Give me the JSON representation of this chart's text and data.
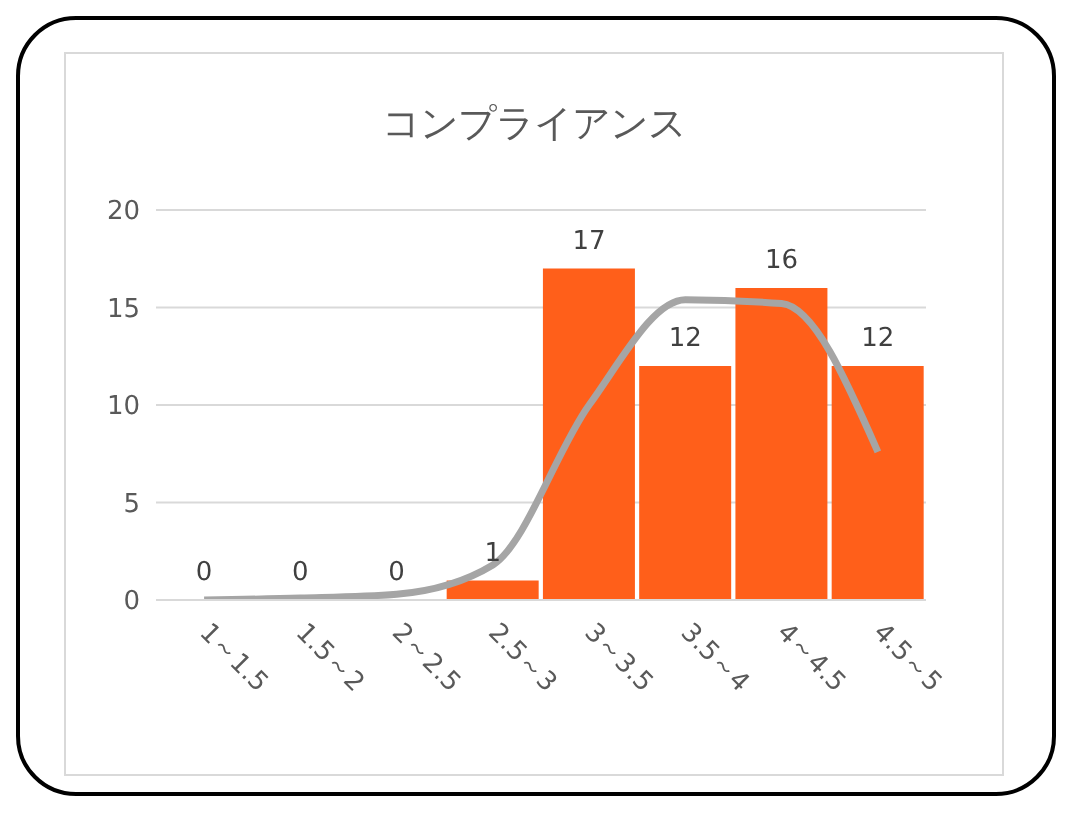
{
  "chart_data": {
    "type": "bar",
    "title": "コンプライアンス",
    "categories": [
      "1～1.5",
      "1.5～2",
      "2～2.5",
      "2.5～3",
      "3～3.5",
      "3.5～4",
      "4～4.5",
      "4.5～5"
    ],
    "series": [
      {
        "color": "#ff5f1a",
        "values": [
          0,
          0,
          0,
          1,
          17,
          12,
          16,
          12
        ],
        "value_labels": [
          "0",
          "0",
          "0",
          "1",
          "17",
          "12",
          "16",
          "12"
        ]
      },
      {
        "type": "line",
        "color": "#a5a5a5",
        "values": [
          0,
          0.1,
          0.3,
          1.8,
          10,
          15.4,
          15.2,
          7.6
        ]
      }
    ],
    "ylim": [
      0,
      20
    ],
    "yticks": [
      0,
      5,
      10,
      15,
      20
    ],
    "grid": "y",
    "legend": false,
    "marker": "none",
    "line_style": "solid"
  }
}
